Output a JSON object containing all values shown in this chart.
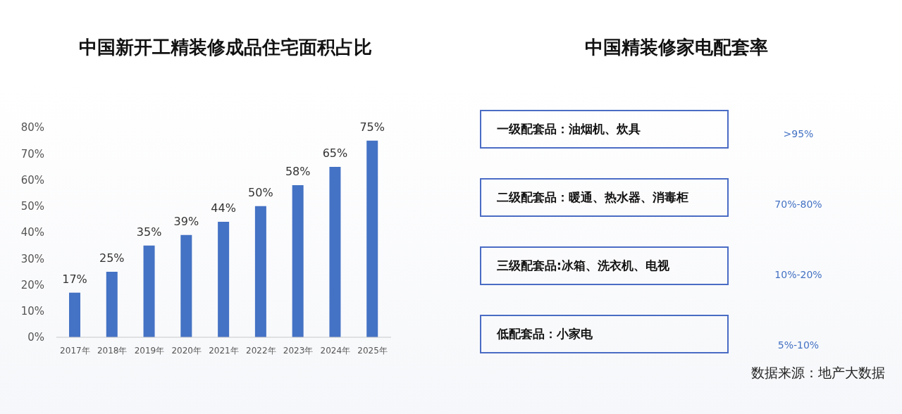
{
  "chart_data": [
    {
      "type": "bar",
      "title": "中国新开工精装修成品住宅面积占比",
      "categories": [
        "2017年",
        "2018年",
        "2019年",
        "2020年",
        "2021年",
        "2022年",
        "2023年",
        "2024年",
        "2025年"
      ],
      "values": [
        17,
        25,
        35,
        39,
        44,
        50,
        58,
        65,
        75
      ],
      "value_labels": [
        "17%",
        "25%",
        "35%",
        "39%",
        "44%",
        "50%",
        "58%",
        "65%",
        "75%"
      ],
      "color": "#4472c4",
      "ylim": [
        0,
        80
      ],
      "yticks": [
        {
          "value": 0,
          "label": "0%"
        },
        {
          "value": 10,
          "label": "10%"
        },
        {
          "value": 20,
          "label": "20%"
        },
        {
          "value": 30,
          "label": "30%"
        },
        {
          "value": 40,
          "label": "40%"
        },
        {
          "value": 50,
          "label": "50%"
        },
        {
          "value": 60,
          "label": "60%"
        },
        {
          "value": 70,
          "label": "70%"
        },
        {
          "value": 80,
          "label": "80%"
        }
      ]
    },
    {
      "type": "other",
      "title": "中国精装修家电配套率",
      "categories": [
        "一级配套品：油烟机、炊具",
        "二级配套品：暖通、热水器、消毒柜",
        "三级配套品:冰箱、洗衣机、电视",
        "低配套品：小家电"
      ],
      "value_labels": [
        ">95%",
        "70%-80%",
        "10%-20%",
        "5%-10%"
      ],
      "annotations": [
        "数据来源：地产大数据"
      ]
    }
  ]
}
